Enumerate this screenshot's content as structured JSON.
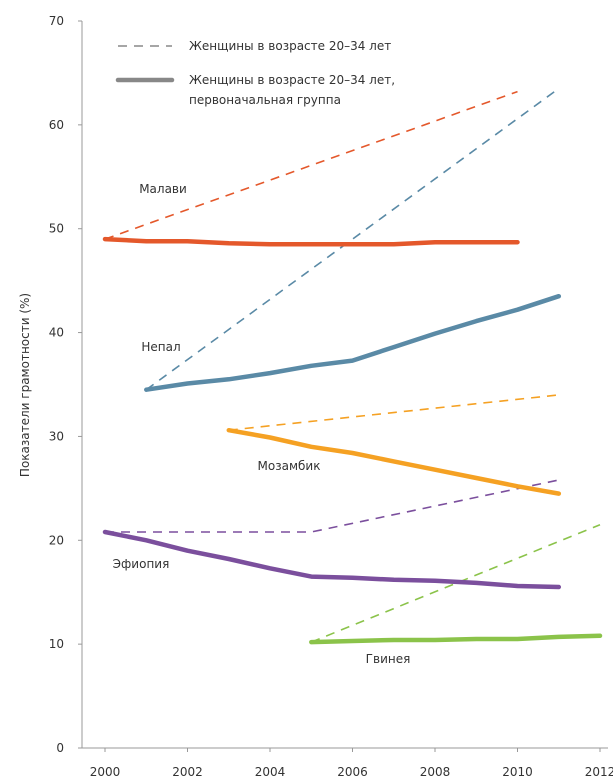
{
  "chart_data": {
    "type": "line",
    "ylabel": "Показатели грамотности (%)",
    "xlabel": "",
    "xlim": [
      2000,
      2012
    ],
    "ylim": [
      0,
      70
    ],
    "x_ticks": [
      "2000",
      "2002",
      "2004",
      "2006",
      "2008",
      "2010",
      "2012"
    ],
    "y_ticks": [
      "0",
      "10",
      "20",
      "30",
      "40",
      "50",
      "60",
      "70"
    ],
    "grid": false,
    "legend_position": "top-left",
    "legend": {
      "dashed": "Женщины в возрасте 20–34 лет",
      "solid_line1": "Женщины в возрасте 20–34 лет,",
      "solid_line2": "первоначальная группа"
    },
    "series": [
      {
        "name": "Малави",
        "color": "#E4582B",
        "dashed": [
          [
            2000,
            49.0
          ],
          [
            2010,
            63.2
          ]
        ],
        "solid": [
          [
            2000,
            49.0
          ],
          [
            2001,
            48.8
          ],
          [
            2002,
            48.8
          ],
          [
            2003,
            48.6
          ],
          [
            2004,
            48.5
          ],
          [
            2005,
            48.5
          ],
          [
            2006,
            48.5
          ],
          [
            2007,
            48.5
          ],
          [
            2008,
            48.7
          ],
          [
            2009,
            48.7
          ],
          [
            2010,
            48.7
          ]
        ]
      },
      {
        "name": "Непал",
        "color": "#5A8AA6",
        "dashed": [
          [
            2001,
            34.5
          ],
          [
            2011,
            63.5
          ]
        ],
        "solid": [
          [
            2001,
            34.5
          ],
          [
            2002,
            35.1
          ],
          [
            2003,
            35.5
          ],
          [
            2004,
            36.1
          ],
          [
            2005,
            36.8
          ],
          [
            2006,
            37.3
          ],
          [
            2007,
            38.6
          ],
          [
            2008,
            39.9
          ],
          [
            2009,
            41.1
          ],
          [
            2010,
            42.2
          ],
          [
            2011,
            43.5
          ]
        ]
      },
      {
        "name": "Мозамбик",
        "color": "#F5A123",
        "dashed": [
          [
            2003,
            30.6
          ],
          [
            2011,
            34.0
          ]
        ],
        "solid": [
          [
            2003,
            30.6
          ],
          [
            2004,
            29.9
          ],
          [
            2005,
            29.0
          ],
          [
            2006,
            28.4
          ],
          [
            2007,
            27.6
          ],
          [
            2008,
            26.8
          ],
          [
            2009,
            26.0
          ],
          [
            2010,
            25.2
          ],
          [
            2011,
            24.5
          ]
        ]
      },
      {
        "name": "Эфиопия",
        "color": "#7B4F9D",
        "dashed": [
          [
            2000,
            20.8
          ],
          [
            2005,
            20.8
          ],
          [
            2011,
            25.8
          ]
        ],
        "solid": [
          [
            2000,
            20.8
          ],
          [
            2001,
            20.0
          ],
          [
            2002,
            19.0
          ],
          [
            2003,
            18.2
          ],
          [
            2004,
            17.3
          ],
          [
            2005,
            16.5
          ],
          [
            2006,
            16.4
          ],
          [
            2007,
            16.2
          ],
          [
            2008,
            16.1
          ],
          [
            2009,
            15.9
          ],
          [
            2010,
            15.6
          ],
          [
            2011,
            15.5
          ]
        ]
      },
      {
        "name": "Гвинея",
        "color": "#8BC34A",
        "dashed": [
          [
            2005,
            10.2
          ],
          [
            2012,
            21.5
          ]
        ],
        "solid": [
          [
            2005,
            10.2
          ],
          [
            2006,
            10.3
          ],
          [
            2007,
            10.4
          ],
          [
            2008,
            10.4
          ],
          [
            2009,
            10.5
          ],
          [
            2010,
            10.5
          ],
          [
            2011,
            10.7
          ],
          [
            2012,
            10.8
          ]
        ]
      }
    ]
  }
}
